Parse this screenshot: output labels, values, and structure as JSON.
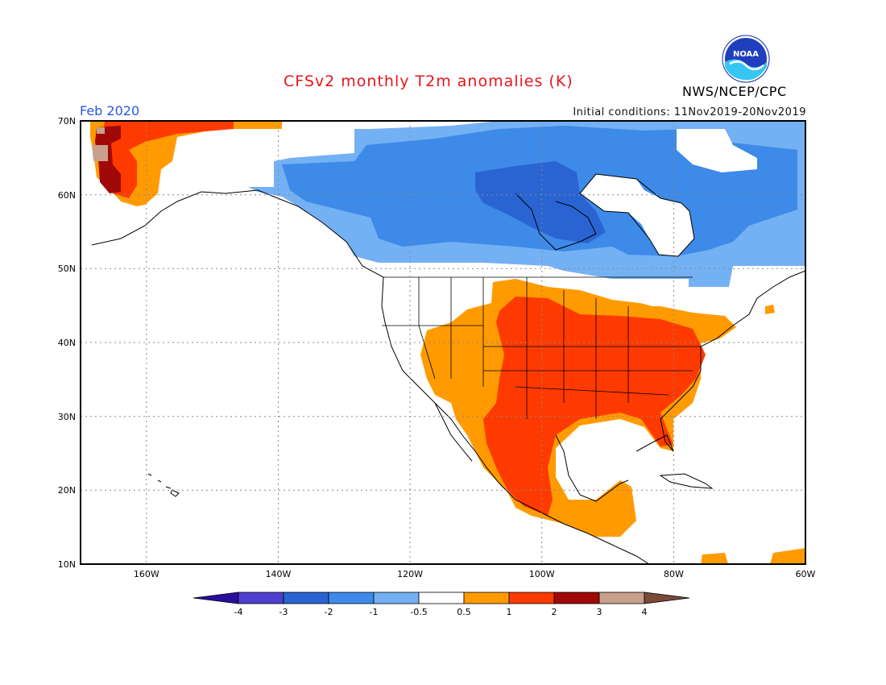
{
  "header": {
    "title": "CFSv2 monthly T2m anomalies (K)",
    "month": "Feb 2020",
    "initial_conditions": "Initial conditions: 11Nov2019-20Nov2019",
    "agency": "NWS/NCEP/CPC",
    "logo_text": "NOAA"
  },
  "axes": {
    "lat_labels": [
      "70N",
      "60N",
      "50N",
      "40N",
      "30N",
      "20N",
      "10N"
    ],
    "lon_labels": [
      "160W",
      "140W",
      "120W",
      "100W",
      "80W",
      "60W"
    ]
  },
  "colorbar": {
    "labels": [
      "-4",
      "-3",
      "-2",
      "-1",
      "-0.5",
      "0.5",
      "1",
      "2",
      "3",
      "4"
    ],
    "colors": [
      "#2a0f9e",
      "#4f3fcf",
      "#2a64d3",
      "#3d8ae8",
      "#74b0f4",
      "#ffffff",
      "#ff9b00",
      "#ff3a00",
      "#a10808",
      "#c8a08c",
      "#7a4a3a"
    ]
  },
  "palette": {
    "cold_1": "#74b0f4",
    "cold_2": "#3d8ae8",
    "cold_3": "#2a64d3",
    "warm_1": "#ff9b00",
    "warm_2": "#ff3a00",
    "warm_3": "#a10808",
    "warm_4": "#c8a08c"
  }
}
